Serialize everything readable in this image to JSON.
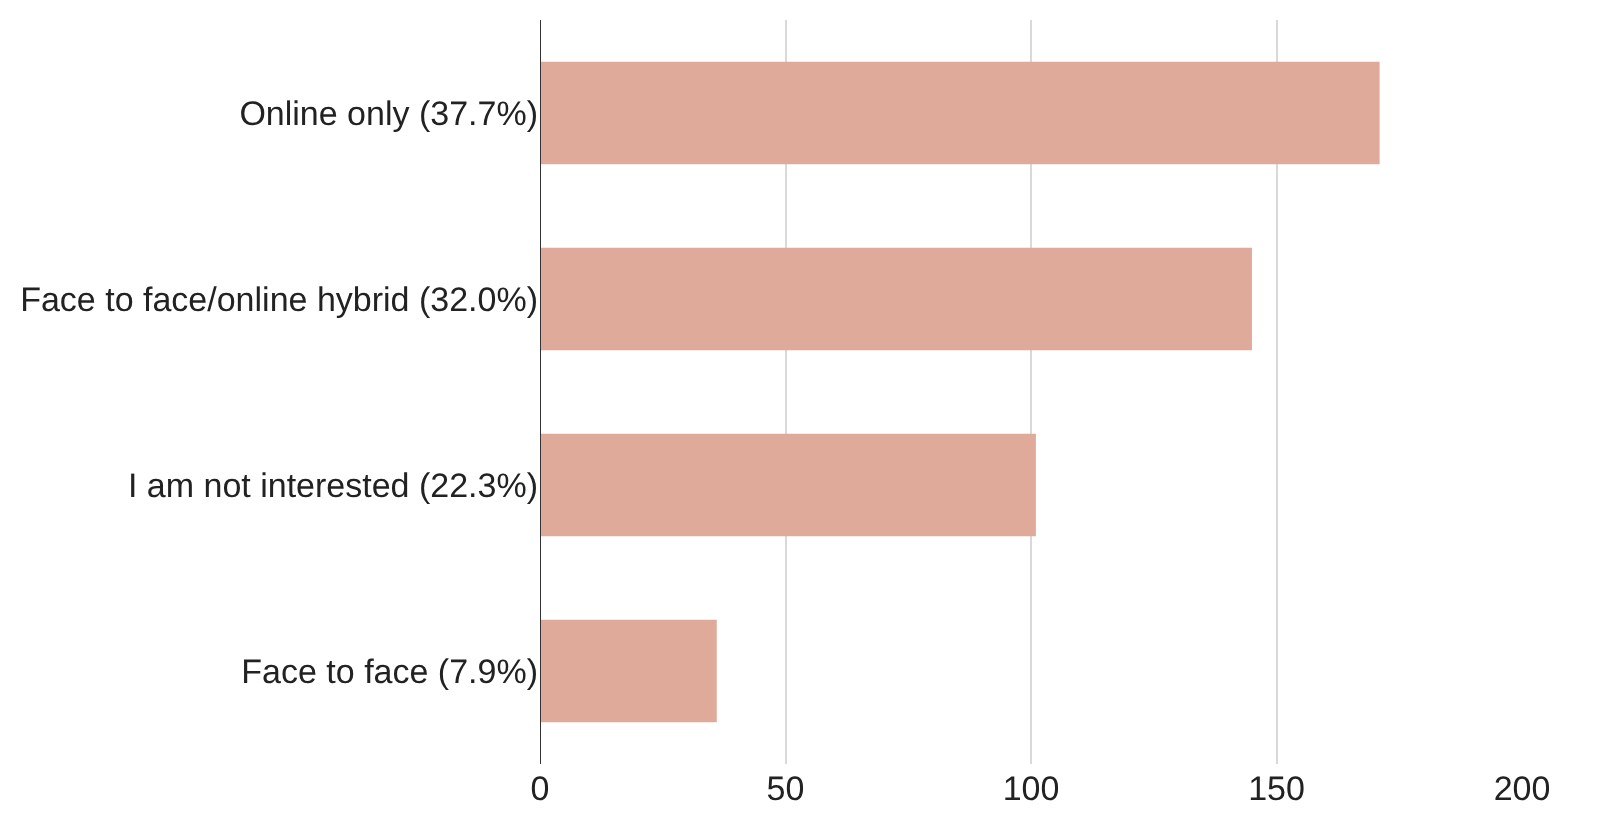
{
  "chart_data": {
    "type": "bar",
    "orientation": "horizontal",
    "categories": [
      "Online only (37.7%)",
      "Face to face/online hybrid (32.0%)",
      "I am not interested (22.3%)",
      "Face to face (7.9%)"
    ],
    "values": [
      171,
      145,
      101,
      36
    ],
    "color": "#e0aa9a",
    "xlim": [
      0,
      200
    ],
    "xticks": [
      0,
      50,
      100,
      150,
      200
    ],
    "grid": "x"
  }
}
